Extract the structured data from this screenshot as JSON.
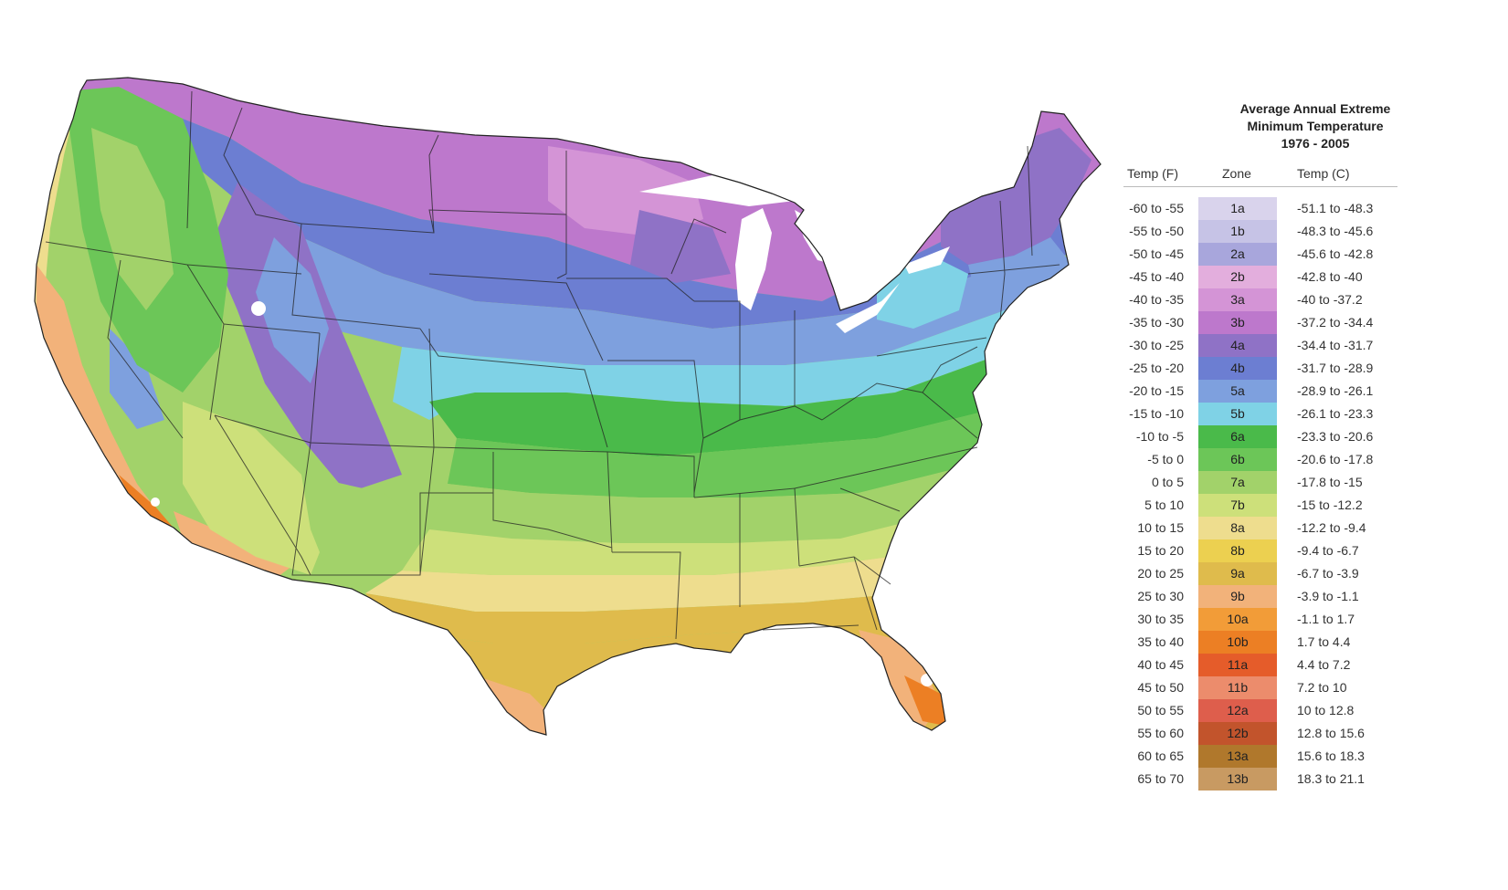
{
  "legend": {
    "title_line1": "Average Annual Extreme",
    "title_line2": "Minimum Temperature",
    "title_line3": "1976 - 2005",
    "col_temp_f": "Temp (F)",
    "col_zone": "Zone",
    "col_temp_c": "Temp (C)",
    "rows": [
      {
        "f": "-60 to -55",
        "zone": "1a",
        "c": "-51.1 to -48.3",
        "color": "#d9d3ec"
      },
      {
        "f": "-55 to -50",
        "zone": "1b",
        "c": "-48.3 to -45.6",
        "color": "#c6c3e6"
      },
      {
        "f": "-50 to -45",
        "zone": "2a",
        "c": "-45.6 to -42.8",
        "color": "#a8a6dc"
      },
      {
        "f": "-45 to -40",
        "zone": "2b",
        "c": "-42.8 to -40",
        "color": "#e3aedd"
      },
      {
        "f": "-40 to -35",
        "zone": "3a",
        "c": "-40 to -37.2",
        "color": "#d494d6"
      },
      {
        "f": "-35 to -30",
        "zone": "3b",
        "c": "-37.2 to -34.4",
        "color": "#bd78cc"
      },
      {
        "f": "-30 to -25",
        "zone": "4a",
        "c": "-34.4 to -31.7",
        "color": "#8f72c6"
      },
      {
        "f": "-25 to -20",
        "zone": "4b",
        "c": "-31.7 to -28.9",
        "color": "#6c7ed2"
      },
      {
        "f": "-20 to -15",
        "zone": "5a",
        "c": "-28.9 to -26.1",
        "color": "#7ea0de"
      },
      {
        "f": "-15 to -10",
        "zone": "5b",
        "c": "-26.1 to -23.3",
        "color": "#7fd2e6"
      },
      {
        "f": "-10 to -5",
        "zone": "6a",
        "c": "-23.3 to -20.6",
        "color": "#4aba4a"
      },
      {
        "f": "-5 to 0",
        "zone": "6b",
        "c": "-20.6 to -17.8",
        "color": "#6cc658"
      },
      {
        "f": "0 to 5",
        "zone": "7a",
        "c": "-17.8 to -15",
        "color": "#a2d26a"
      },
      {
        "f": "5 to 10",
        "zone": "7b",
        "c": "-15 to -12.2",
        "color": "#cde07a"
      },
      {
        "f": "10 to 15",
        "zone": "8a",
        "c": "-12.2 to -9.4",
        "color": "#eedd8e"
      },
      {
        "f": "15 to 20",
        "zone": "8b",
        "c": "-9.4 to -6.7",
        "color": "#ecd050"
      },
      {
        "f": "20 to 25",
        "zone": "9a",
        "c": "-6.7 to -3.9",
        "color": "#dfbb4c"
      },
      {
        "f": "25 to 30",
        "zone": "9b",
        "c": "-3.9 to -1.1",
        "color": "#f2b27a"
      },
      {
        "f": "30 to 35",
        "zone": "10a",
        "c": "-1.1 to 1.7",
        "color": "#f29c38"
      },
      {
        "f": "35 to 40",
        "zone": "10b",
        "c": "1.7 to 4.4",
        "color": "#ec7f24"
      },
      {
        "f": "40 to 45",
        "zone": "11a",
        "c": "4.4 to 7.2",
        "color": "#e55c2a"
      },
      {
        "f": "45 to 50",
        "zone": "11b",
        "c": "7.2 to 10",
        "color": "#ec8c6c"
      },
      {
        "f": "50 to 55",
        "zone": "12a",
        "c": "10 to 12.8",
        "color": "#de5e4c"
      },
      {
        "f": "55 to 60",
        "zone": "12b",
        "c": "12.8 to 15.6",
        "color": "#c2542c"
      },
      {
        "f": "60 to 65",
        "zone": "13a",
        "c": "15.6 to 18.3",
        "color": "#b0782c"
      },
      {
        "f": "65 to 70",
        "zone": "13b",
        "c": "18.3 to 21.1",
        "color": "#c89a62"
      }
    ]
  }
}
